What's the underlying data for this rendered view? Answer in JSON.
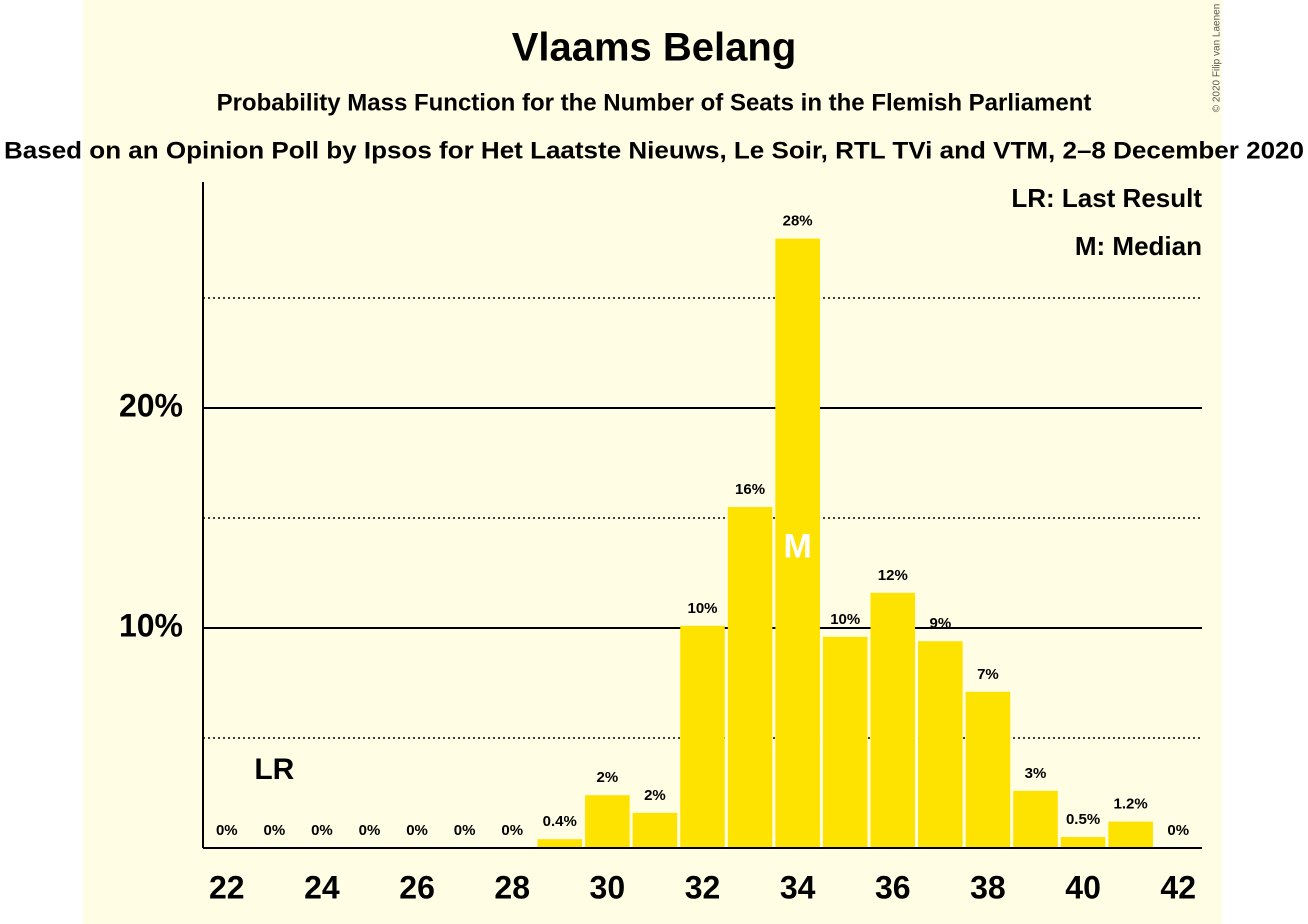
{
  "chart_data": {
    "type": "bar",
    "title": "Vlaams Belang",
    "subtitle": "Probability Mass Function for the Number of Seats in the Flemish Parliament",
    "subtitle2": "Based on an Opinion Poll by Ipsos for Het Laatste Nieuws, Le Soir, RTL TVi and VTM, 2–8 December 2020",
    "credit": "© 2020 Filip van Laenen",
    "x": [
      22,
      23,
      24,
      25,
      26,
      27,
      28,
      29,
      30,
      31,
      32,
      33,
      34,
      35,
      36,
      37,
      38,
      39,
      40,
      41,
      42
    ],
    "values": [
      0,
      0,
      0,
      0,
      0,
      0,
      0,
      0.4,
      2.4,
      1.6,
      10.1,
      15.5,
      27.7,
      9.6,
      11.6,
      9.4,
      7.1,
      2.6,
      0.5,
      1.2,
      0
    ],
    "value_labels": [
      "0%",
      "0%",
      "0%",
      "0%",
      "0%",
      "0%",
      "0%",
      "0.4%",
      "2%",
      "2%",
      "10%",
      "16%",
      "28%",
      "10%",
      "12%",
      "9%",
      "7%",
      "3%",
      "0.5%",
      "1.2%",
      "0%"
    ],
    "color": "#ffe300",
    "xlim": [
      21.5,
      42.5
    ],
    "xticks": [
      22,
      24,
      26,
      28,
      30,
      32,
      34,
      36,
      38,
      40,
      42
    ],
    "ylim": [
      0,
      30
    ],
    "yticks": [
      {
        "value": 10,
        "label": "10%"
      },
      {
        "value": 20,
        "label": "20%"
      }
    ],
    "minor_yticks": [
      5,
      15,
      25
    ],
    "grid": true,
    "last_result": 23,
    "last_result_label": "LR",
    "median": 34,
    "median_label": "M",
    "legend": [
      "LR: Last Result",
      "M: Median"
    ],
    "legend_position": "upper right"
  }
}
